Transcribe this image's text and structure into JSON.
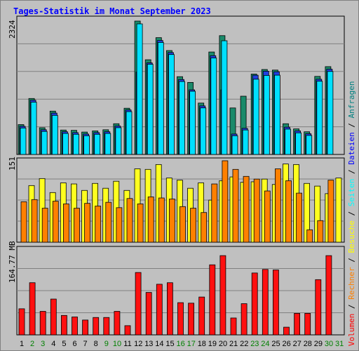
{
  "title": "Tages-Statistik im Monat September 2023",
  "legend": {
    "items": [
      {
        "label": "Volumen",
        "color": "#ff0000"
      },
      {
        "label": "Rechner",
        "color": "#ff8000"
      },
      {
        "label": "Besuche",
        "color": "#ffff00"
      },
      {
        "label": "Seiten",
        "color": "#00ffff"
      },
      {
        "label": "Dateien",
        "color": "#0000ff"
      },
      {
        "label": "Anfragen",
        "color": "#008080"
      }
    ],
    "separator": " / "
  },
  "colors": {
    "anfragen": "#1a8a6a",
    "dateien": "#2040e0",
    "seiten": "#00e0ff",
    "besuche": "#ffff20",
    "rechner": "#ff8000",
    "volumen": "#ff1010",
    "weekend_label": "#008000",
    "weekday_label": "#000000"
  },
  "chart_data": [
    {
      "type": "bar",
      "name": "top",
      "ytick": "2324",
      "ylim": [
        0,
        2324
      ],
      "categories": [
        "1",
        "2",
        "3",
        "4",
        "5",
        "6",
        "7",
        "8",
        "9",
        "10",
        "11",
        "12",
        "13",
        "14",
        "15",
        "16",
        "17",
        "18",
        "19",
        "20",
        "21",
        "22",
        "23",
        "24",
        "25",
        "26",
        "27",
        "28",
        "29",
        "30",
        "31"
      ],
      "weekend": [
        false,
        true,
        true,
        false,
        false,
        false,
        false,
        false,
        true,
        true,
        false,
        false,
        false,
        false,
        false,
        true,
        true,
        false,
        false,
        false,
        false,
        false,
        true,
        true,
        false,
        false,
        false,
        false,
        false,
        true,
        true
      ],
      "series": [
        {
          "key": "anfragen",
          "values": [
            520,
            975,
            465,
            755,
            425,
            420,
            390,
            410,
            430,
            535,
            805,
            2324,
            1650,
            2035,
            1810,
            1355,
            1255,
            895,
            1785,
            2070,
            810,
            1015,
            1400,
            1480,
            1470,
            535,
            445,
            395,
            1360,
            1530,
            0
          ]
        },
        {
          "key": "dateien",
          "values": [
            515,
            970,
            455,
            745,
            420,
            405,
            380,
            405,
            420,
            520,
            800,
            1460,
            1620,
            2010,
            1800,
            1330,
            1150,
            870,
            1745,
            1150,
            380,
            480,
            1405,
            1475,
            1465,
            500,
            435,
            385,
            1335,
            1510,
            0
          ]
        },
        {
          "key": "seiten",
          "values": [
            510,
            960,
            450,
            730,
            415,
            400,
            375,
            400,
            415,
            515,
            795,
            2324,
            1620,
            2000,
            1790,
            1320,
            1150,
            860,
            1730,
            2030,
            375,
            475,
            1360,
            1425,
            1430,
            490,
            425,
            380,
            1325,
            1495,
            0
          ]
        }
      ]
    },
    {
      "type": "bar",
      "name": "middle",
      "ytick": "151",
      "ylim": [
        0,
        151
      ],
      "categories": [
        "1",
        "2",
        "3",
        "4",
        "5",
        "6",
        "7",
        "8",
        "9",
        "10",
        "11",
        "12",
        "13",
        "14",
        "15",
        "16",
        "17",
        "18",
        "19",
        "20",
        "21",
        "22",
        "23",
        "24",
        "25",
        "26",
        "27",
        "28",
        "29",
        "30",
        "31"
      ],
      "series": [
        {
          "key": "besuche",
          "values": [
            105,
            118,
            92,
            110,
            108,
            96,
            109,
            100,
            113,
            96,
            136,
            135,
            144,
            119,
            115,
            100,
            110,
            78,
            114,
            121,
            111,
            112,
            117,
            107,
            145,
            144,
            109,
            104,
            90,
            119,
            0
          ]
        },
        {
          "key": "rechner",
          "values": [
            75,
            79,
            63,
            76,
            71,
            63,
            72,
            67,
            74,
            64,
            81,
            71,
            84,
            82,
            80,
            66,
            63,
            55,
            108,
            151,
            135,
            122,
            117,
            95,
            136,
            114,
            91,
            23,
            40,
            115,
            0
          ]
        }
      ]
    },
    {
      "type": "bar",
      "name": "bottom",
      "ytick": "164.77 MB",
      "ylim": [
        0,
        164.77
      ],
      "categories": [
        "1",
        "2",
        "3",
        "4",
        "5",
        "6",
        "7",
        "8",
        "9",
        "10",
        "11",
        "12",
        "13",
        "14",
        "15",
        "16",
        "17",
        "18",
        "19",
        "20",
        "21",
        "22",
        "23",
        "24",
        "25",
        "26",
        "27",
        "28",
        "29",
        "30",
        "31"
      ],
      "series": [
        {
          "key": "volumen",
          "values": [
            51,
            102,
            46,
            70,
            38,
            35,
            29,
            34,
            34,
            46,
            18,
            122,
            83,
            99,
            102,
            63,
            62,
            74,
            137,
            155,
            33,
            61,
            121,
            128,
            127,
            15,
            42,
            42,
            108,
            155,
            0
          ]
        }
      ]
    }
  ]
}
